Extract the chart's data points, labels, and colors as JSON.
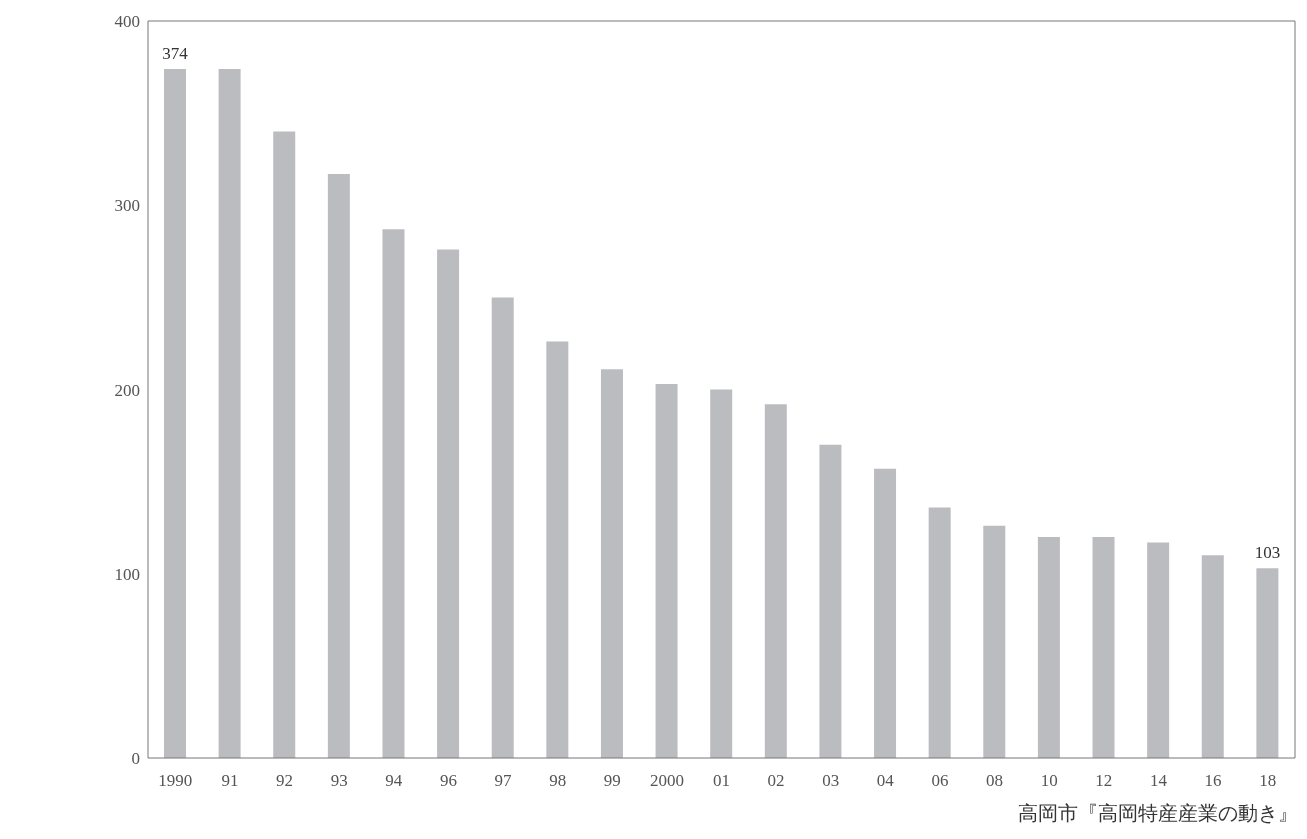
{
  "chart_data": {
    "type": "bar",
    "categories": [
      "1990",
      "91",
      "92",
      "93",
      "94",
      "96",
      "97",
      "98",
      "99",
      "2000",
      "01",
      "02",
      "03",
      "04",
      "06",
      "08",
      "10",
      "12",
      "14",
      "16",
      "18"
    ],
    "values": [
      374,
      374,
      340,
      317,
      287,
      276,
      250,
      226,
      211,
      203,
      200,
      192,
      170,
      157,
      136,
      126,
      120,
      120,
      117,
      110,
      103
    ],
    "value_labels": [
      "374",
      null,
      null,
      null,
      null,
      null,
      null,
      null,
      null,
      null,
      null,
      null,
      null,
      null,
      null,
      null,
      null,
      null,
      null,
      null,
      "103"
    ],
    "color": "#bbbcc0",
    "ylim": [
      0,
      400
    ],
    "yticks": [
      0,
      100,
      200,
      300,
      400
    ],
    "grid": false,
    "legend": false,
    "annotations": [
      "高岡市『高岡特産産業の動き』"
    ]
  }
}
